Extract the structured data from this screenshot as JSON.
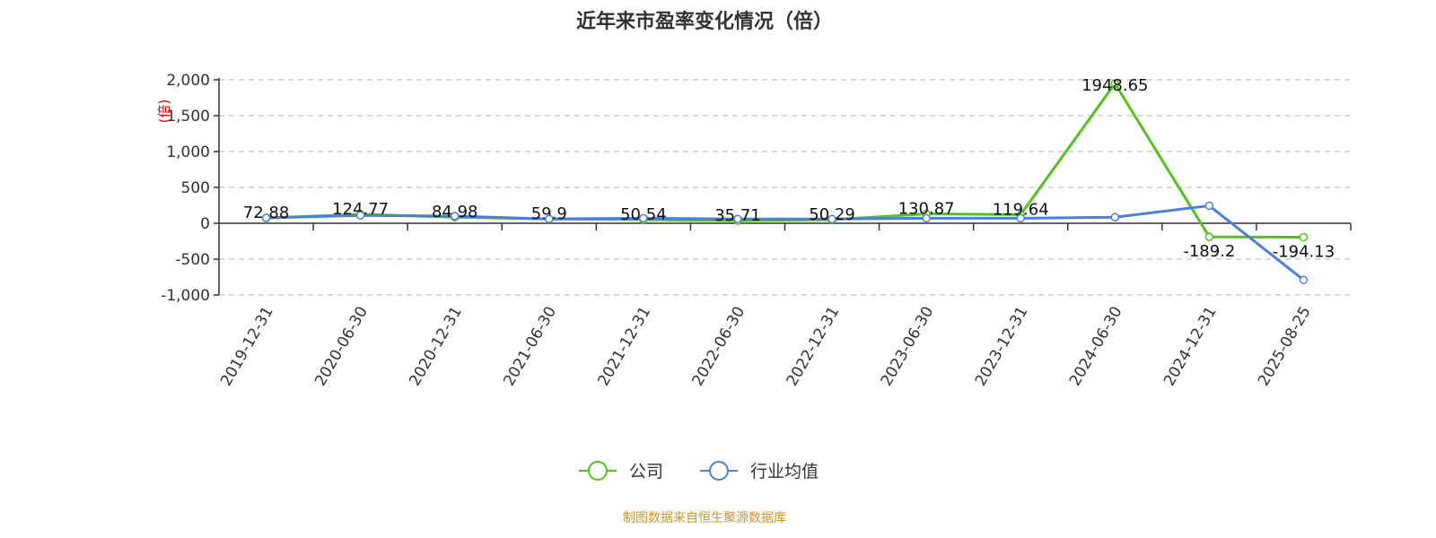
{
  "chart_data": {
    "type": "line",
    "title": "近年来市盈率变化情况（倍）",
    "ylabel": "(倍)",
    "xlabel": "",
    "categories": [
      "2019-12-31",
      "2020-06-30",
      "2020-12-31",
      "2021-06-30",
      "2021-12-31",
      "2022-06-30",
      "2022-12-31",
      "2023-06-30",
      "2023-12-31",
      "2024-06-30",
      "2024-12-31",
      "2025-08-25"
    ],
    "ylim": [
      -1000,
      2000
    ],
    "yticks": [
      2000,
      1500,
      1000,
      500,
      0,
      -500,
      -1000
    ],
    "ytick_labels": [
      "2,000",
      "1,500",
      "1,000",
      "500",
      "0",
      "-500",
      "-1,000"
    ],
    "grid": true,
    "legend_position": "bottom",
    "series": [
      {
        "name": "公司",
        "color": "#52c41a",
        "show_labels": true,
        "values": [
          72.88,
          124.77,
          84.98,
          59.9,
          50.54,
          35.71,
          50.29,
          130.87,
          119.64,
          1948.65,
          -189.2,
          -194.13
        ],
        "labels": [
          "72.88",
          "124.77",
          "84.98",
          "59.9",
          "50.54",
          "35.71",
          "50.29",
          "130.87",
          "119.64",
          "1948.65",
          "-189.2",
          "-194.13"
        ]
      },
      {
        "name": "行业均值",
        "color": "#4a7fe0",
        "show_labels": false,
        "values": [
          75,
          110,
          100,
          60,
          70,
          60,
          60,
          70,
          70,
          85,
          245,
          -790
        ]
      }
    ]
  },
  "source": "制图数据来自恒生聚源数据库"
}
